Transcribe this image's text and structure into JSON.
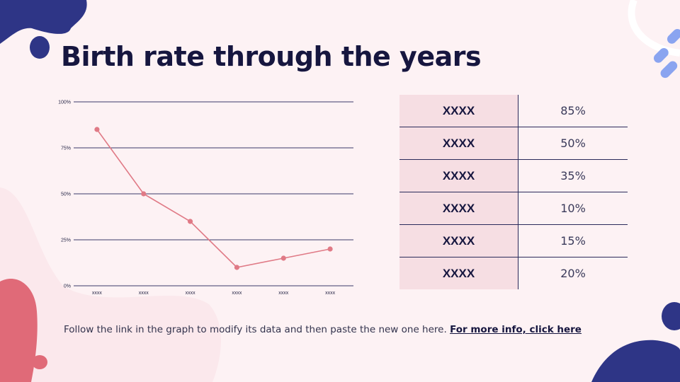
{
  "slide": {
    "title": "Birth rate through the years",
    "footer_text": "Follow the link in the graph to modify its data and then paste the new one here.",
    "footer_link": "For more info, click here"
  },
  "colors": {
    "line": "#e07a86",
    "grid": "#3a3a6a",
    "navy_blob": "#2e3586",
    "pink_blob": "#e06a78",
    "light_blue": "#8aa4f0"
  },
  "chart_data": {
    "type": "line",
    "categories": [
      "xxxx",
      "xxxx",
      "xxxx",
      "xxxx",
      "xxxx",
      "xxxx"
    ],
    "values": [
      85,
      50,
      35,
      10,
      15,
      20
    ],
    "ylim": [
      0,
      100
    ],
    "yticks": [
      "0%",
      "25%",
      "50%",
      "75%",
      "100%"
    ],
    "grid": true,
    "legend": "none"
  },
  "table": {
    "rows": [
      {
        "label": "XXXX",
        "value": "85%"
      },
      {
        "label": "XXXX",
        "value": "50%"
      },
      {
        "label": "XXXX",
        "value": "35%"
      },
      {
        "label": "XXXX",
        "value": "10%"
      },
      {
        "label": "XXXX",
        "value": "15%"
      },
      {
        "label": "XXXX",
        "value": "20%"
      }
    ]
  }
}
